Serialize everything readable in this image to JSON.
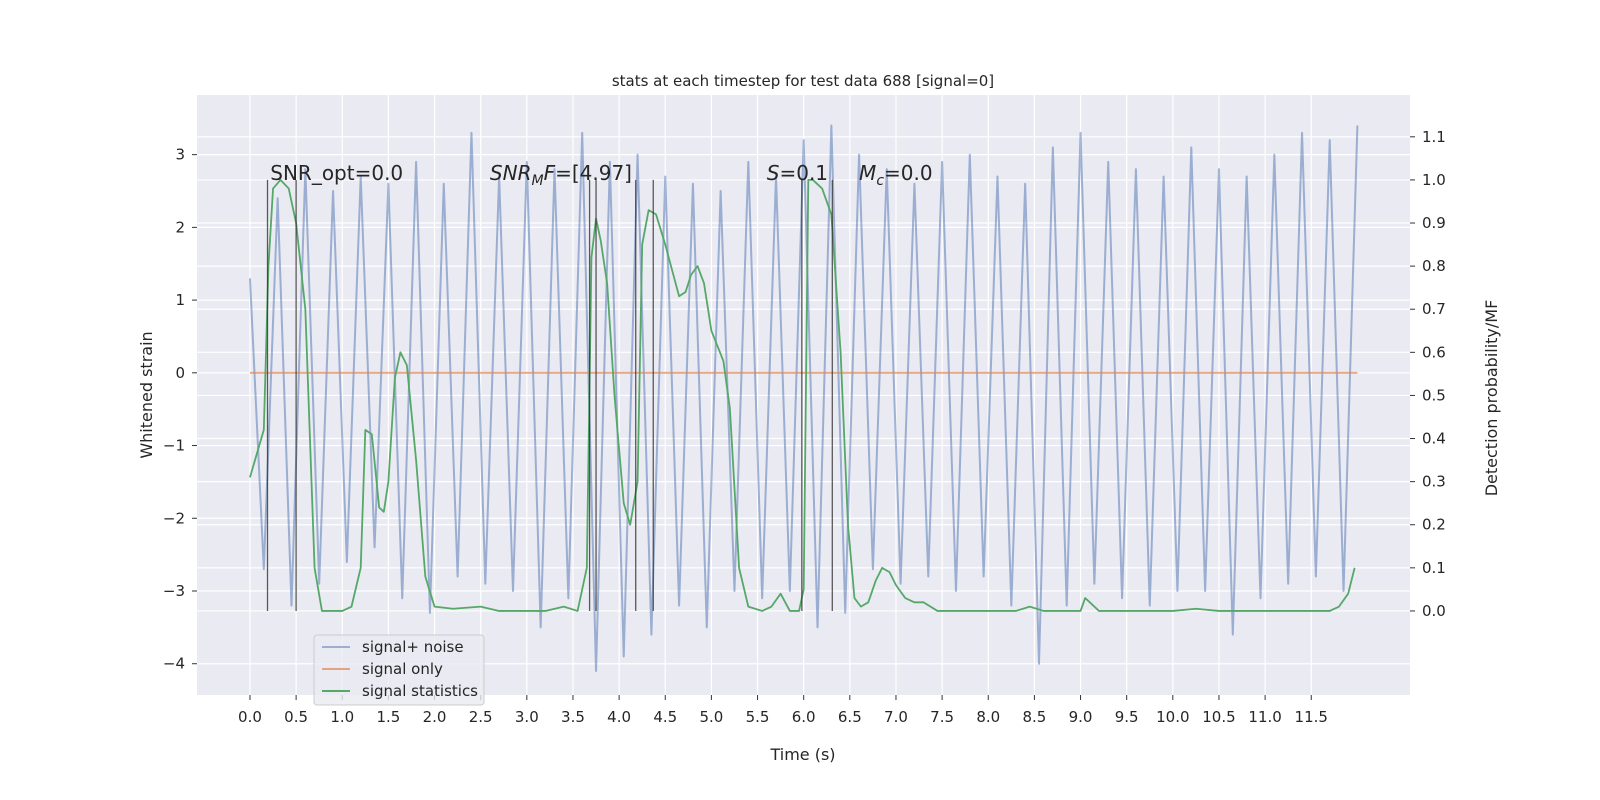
{
  "chart_data": {
    "type": "line",
    "title": "stats at each timestep for test data 688 [signal=0]",
    "xlabel": "Time (s)",
    "ylabel": "Whitened strain",
    "y2label": "Detection probability/MF",
    "xlim": [
      -0.574,
      12.57
    ],
    "ylim": [
      -4.43,
      3.82
    ],
    "y2lim": [
      -0.195,
      1.197
    ],
    "xticks": [
      {
        "value": 0,
        "label": "0.0"
      },
      {
        "value": 0.5,
        "label": "0.5"
      },
      {
        "value": 1,
        "label": "1.0"
      },
      {
        "value": 1.5,
        "label": "1.5"
      },
      {
        "value": 2,
        "label": "2.0"
      },
      {
        "value": 2.5,
        "label": "2.5"
      },
      {
        "value": 3,
        "label": "3.0"
      },
      {
        "value": 3.5,
        "label": "3.5"
      },
      {
        "value": 4,
        "label": "4.0"
      },
      {
        "value": 4.5,
        "label": "4.5"
      },
      {
        "value": 5,
        "label": "5.0"
      },
      {
        "value": 5.5,
        "label": "5.5"
      },
      {
        "value": 6,
        "label": "6.0"
      },
      {
        "value": 6.5,
        "label": "6.5"
      },
      {
        "value": 7,
        "label": "7.0"
      },
      {
        "value": 7.5,
        "label": "7.5"
      },
      {
        "value": 8,
        "label": "8.0"
      },
      {
        "value": 8.5,
        "label": "8.5"
      },
      {
        "value": 9,
        "label": "9.0"
      },
      {
        "value": 9.5,
        "label": "9.5"
      },
      {
        "value": 10,
        "label": "10.0"
      },
      {
        "value": 10.5,
        "label": "10.5"
      },
      {
        "value": 11,
        "label": "11.0"
      },
      {
        "value": 11.5,
        "label": "11.5"
      }
    ],
    "yticks": [
      {
        "value": -4,
        "label": "−4"
      },
      {
        "value": -3,
        "label": "−3"
      },
      {
        "value": -2,
        "label": "−2"
      },
      {
        "value": -1,
        "label": "−1"
      },
      0,
      1,
      2,
      3
    ],
    "y2ticks": [
      {
        "value": 0,
        "label": "0.0"
      },
      {
        "value": 0.1,
        "label": "0.1"
      },
      {
        "value": 0.2,
        "label": "0.2"
      },
      {
        "value": 0.3,
        "label": "0.3"
      },
      {
        "value": 0.4,
        "label": "0.4"
      },
      {
        "value": 0.5,
        "label": "0.5"
      },
      {
        "value": 0.6,
        "label": "0.6"
      },
      {
        "value": 0.7,
        "label": "0.7"
      },
      {
        "value": 0.8,
        "label": "0.8"
      },
      {
        "value": 0.9,
        "label": "0.9"
      },
      {
        "value": 1,
        "label": "1.0"
      },
      {
        "value": 1.1,
        "label": "1.1"
      }
    ],
    "grid": true,
    "legend": "lower left",
    "series": [
      {
        "name": "signal+ noise",
        "color": "#4c72b0",
        "opacity": 0.5,
        "x": [
          0,
          0.15,
          0.3,
          0.45,
          0.6,
          0.75,
          0.9,
          1.05,
          1.2,
          1.35,
          1.5,
          1.65,
          1.8,
          1.95,
          2.1,
          2.25,
          2.4,
          2.55,
          2.7,
          2.85,
          3,
          3.15,
          3.3,
          3.45,
          3.6,
          3.75,
          3.9,
          4.05,
          4.2,
          4.35,
          4.5,
          4.65,
          4.8,
          4.95,
          5.1,
          5.25,
          5.4,
          5.55,
          5.7,
          5.85,
          6,
          6.15,
          6.3,
          6.45,
          6.6,
          6.75,
          6.9,
          7.05,
          7.2,
          7.35,
          7.5,
          7.65,
          7.8,
          7.95,
          8.1,
          8.25,
          8.4,
          8.55,
          8.7,
          8.85,
          9,
          9.15,
          9.3,
          9.45,
          9.6,
          9.75,
          9.9,
          10.05,
          10.2,
          10.35,
          10.5,
          10.65,
          10.8,
          10.95,
          11.1,
          11.25,
          11.4,
          11.55,
          11.7,
          11.85,
          12
        ],
        "values": [
          1.3,
          -2.7,
          2.4,
          -3.2,
          2.8,
          -2.9,
          2.5,
          -2.6,
          2.7,
          -2.4,
          2.6,
          -3.1,
          2.9,
          -3.3,
          2.6,
          -2.8,
          3.3,
          -2.9,
          2.7,
          -3.0,
          2.9,
          -3.5,
          2.8,
          -3.1,
          3.3,
          -4.1,
          2.9,
          -3.9,
          3.0,
          -3.6,
          2.7,
          -3.2,
          2.6,
          -3.5,
          2.5,
          -3.0,
          2.9,
          -3.1,
          2.7,
          -3.0,
          3.2,
          -3.5,
          3.4,
          -3.3,
          3.0,
          -2.7,
          2.8,
          -2.9,
          2.6,
          -2.8,
          2.9,
          -3.0,
          3.0,
          -2.8,
          2.7,
          -3.2,
          2.6,
          -4.0,
          3.1,
          -3.2,
          3.3,
          -2.9,
          2.9,
          -3.1,
          2.8,
          -3.2,
          2.7,
          -3.0,
          3.1,
          -3.0,
          2.8,
          -3.6,
          2.7,
          -3.1,
          3.0,
          -2.9,
          3.3,
          -2.8,
          3.2,
          -3.0,
          3.4
        ]
      },
      {
        "name": "signal only",
        "color": "#dd8452",
        "opacity": 0.7,
        "x": [
          0,
          12
        ],
        "values": [
          0,
          0
        ]
      },
      {
        "name": "signal statistics",
        "color": "#55a868",
        "opacity": 1,
        "axis": "y2",
        "x": [
          0,
          0.15,
          0.2,
          0.25,
          0.33,
          0.42,
          0.5,
          0.6,
          0.7,
          0.78,
          0.9,
          1.0,
          1.1,
          1.2,
          1.25,
          1.32,
          1.4,
          1.45,
          1.5,
          1.57,
          1.63,
          1.7,
          1.8,
          1.9,
          2.0,
          2.2,
          2.5,
          2.7,
          3.0,
          3.2,
          3.4,
          3.55,
          3.65,
          3.7,
          3.75,
          3.8,
          3.87,
          3.95,
          4.05,
          4.12,
          4.2,
          4.25,
          4.32,
          4.4,
          4.5,
          4.6,
          4.65,
          4.72,
          4.78,
          4.85,
          4.92,
          5.0,
          5.13,
          5.2,
          5.3,
          5.4,
          5.55,
          5.65,
          5.75,
          5.85,
          5.95,
          6.0,
          6.05,
          6.1,
          6.2,
          6.3,
          6.4,
          6.48,
          6.55,
          6.62,
          6.7,
          6.78,
          6.85,
          6.93,
          7.0,
          7.1,
          7.2,
          7.3,
          7.45,
          7.7,
          8.0,
          8.3,
          8.45,
          8.6,
          9.0,
          9.05,
          9.1,
          9.2,
          10.0,
          10.25,
          10.5,
          11.5,
          11.7,
          11.8,
          11.9,
          11.97
        ],
        "values": [
          0.31,
          0.42,
          0.8,
          0.98,
          1.0,
          0.98,
          0.9,
          0.7,
          0.1,
          0.0,
          0.0,
          0.0,
          0.01,
          0.1,
          0.42,
          0.41,
          0.24,
          0.23,
          0.3,
          0.54,
          0.6,
          0.57,
          0.35,
          0.08,
          0.01,
          0.005,
          0.01,
          0.0,
          0.0,
          0.0,
          0.01,
          0.0,
          0.1,
          0.82,
          0.91,
          0.86,
          0.76,
          0.5,
          0.25,
          0.2,
          0.3,
          0.85,
          0.93,
          0.92,
          0.85,
          0.77,
          0.73,
          0.74,
          0.78,
          0.8,
          0.76,
          0.65,
          0.58,
          0.47,
          0.1,
          0.01,
          0.0,
          0.01,
          0.04,
          0.0,
          0.0,
          0.05,
          1.0,
          1.0,
          0.98,
          0.92,
          0.6,
          0.2,
          0.03,
          0.01,
          0.02,
          0.07,
          0.1,
          0.09,
          0.06,
          0.03,
          0.02,
          0.02,
          0.0,
          0.0,
          0.0,
          0.0,
          0.01,
          0.0,
          0.0,
          0.03,
          0.02,
          0.0,
          0.0,
          0.005,
          0.0,
          0.0,
          0.0,
          0.01,
          0.04,
          0.1
        ]
      }
    ],
    "vlines": {
      "x": [
        0.19,
        0.5,
        3.68,
        3.75,
        4.18,
        4.37,
        5.98,
        6.31
      ],
      "ymin": 0,
      "ymax": 1,
      "axis": "y2",
      "color": "#333333"
    },
    "annotations": [
      {
        "x": 0.22,
        "y": 2.65,
        "parts": [
          {
            "text": "SNR_opt=0.0"
          }
        ]
      },
      {
        "x": 2.6,
        "y": 2.65,
        "parts": [
          {
            "text": "SNR",
            "style": "italic"
          },
          {
            "text": "M",
            "style": "sub"
          },
          {
            "text": "F",
            "style": "italic"
          },
          {
            "text": "=[4.97]"
          }
        ]
      },
      {
        "x": 5.6,
        "y": 2.65,
        "parts": [
          {
            "text": "S",
            "style": "italic"
          },
          {
            "text": "=0.1"
          }
        ]
      },
      {
        "x": 6.6,
        "y": 2.65,
        "parts": [
          {
            "text": "M",
            "style": "italic"
          },
          {
            "text": "c",
            "style": "sub"
          },
          {
            "text": "=0.0"
          }
        ]
      }
    ]
  }
}
